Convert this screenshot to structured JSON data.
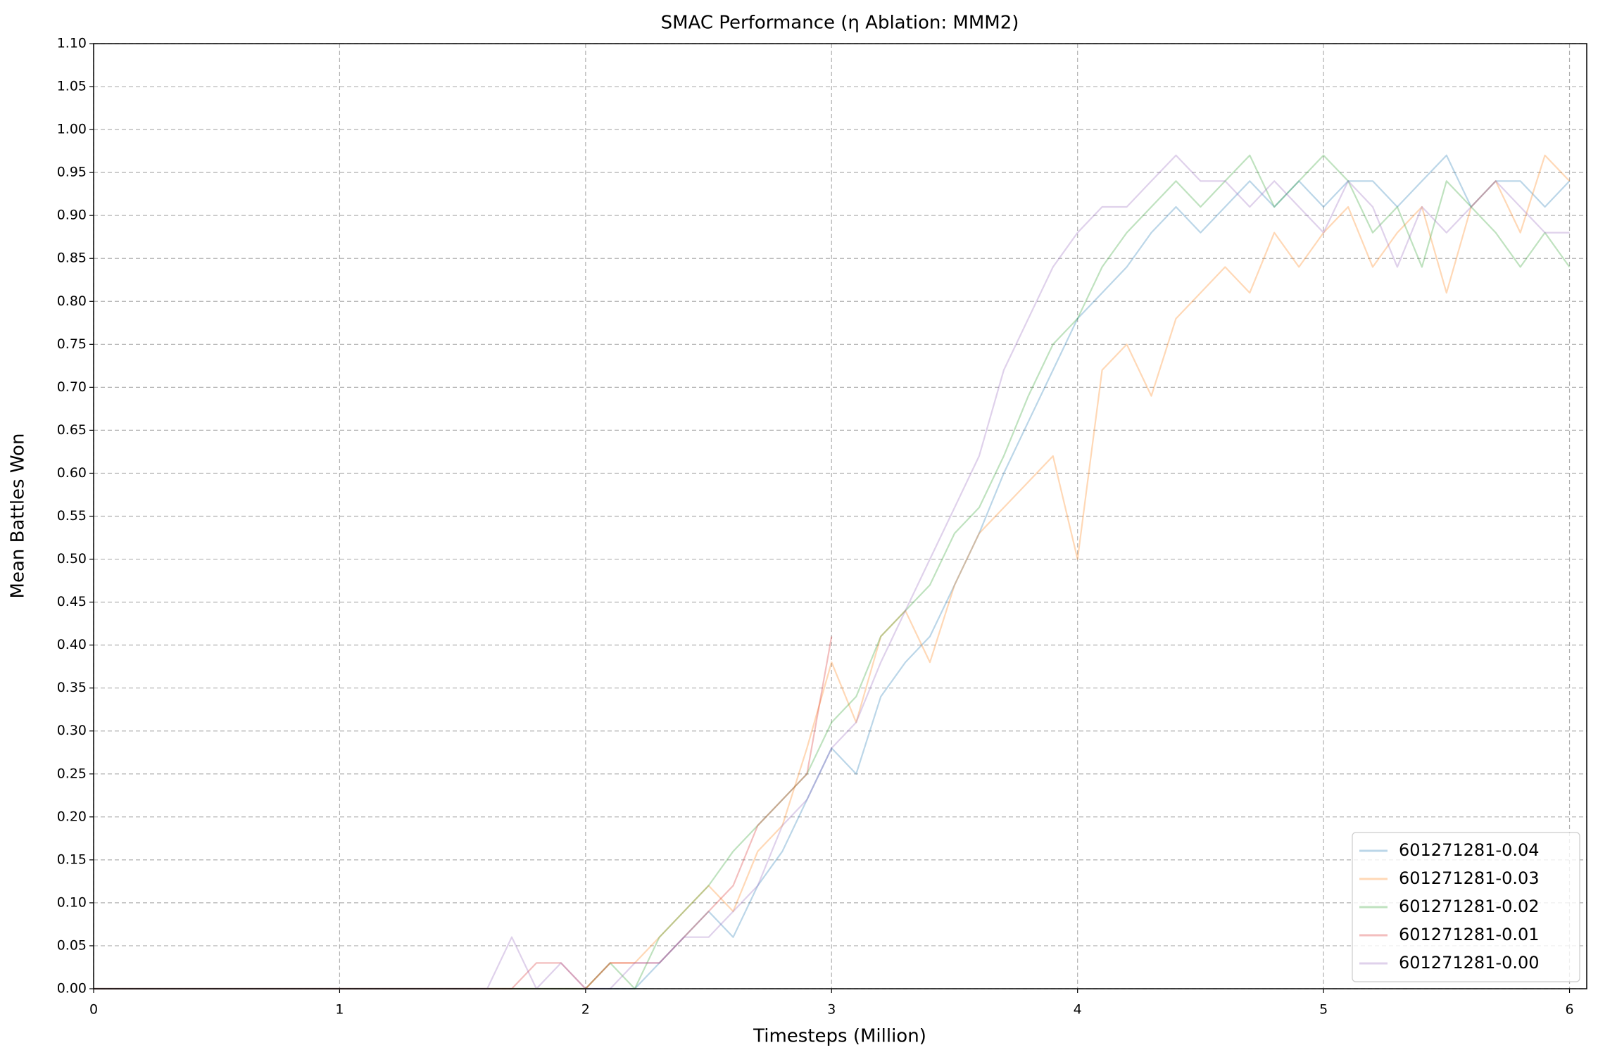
{
  "chart_data": {
    "type": "line",
    "title": "SMAC Performance (η Ablation: MMM2)",
    "x_label": "Timesteps (Million)",
    "y_label": "Mean Battles Won",
    "x": [
      0,
      0.1,
      0.2,
      0.3,
      0.4,
      0.5,
      0.6,
      0.7,
      0.8,
      0.9,
      1,
      1.1,
      1.2,
      1.3,
      1.4,
      1.5,
      1.6,
      1.7,
      1.8,
      1.9,
      2,
      2.1,
      2.2,
      2.3,
      2.4,
      2.5,
      2.6,
      2.7,
      2.8,
      2.9,
      3,
      3.1,
      3.2,
      3.3,
      3.4,
      3.5,
      3.6,
      3.7,
      3.8,
      3.9,
      4,
      4.1,
      4.2,
      4.3,
      4.4,
      4.5,
      4.6,
      4.7,
      4.8,
      4.9,
      5,
      5.1,
      5.2,
      5.3,
      5.4,
      5.5,
      5.6,
      5.7,
      5.8,
      5.9,
      6
    ],
    "series": [
      {
        "name": "601271281-0.04",
        "color": "#1f77b4",
        "values": [
          0,
          0,
          0,
          0,
          0,
          0,
          0,
          0,
          0,
          0,
          0,
          0,
          0,
          0,
          0,
          0,
          0,
          0,
          0,
          0,
          0,
          0,
          0,
          0.03,
          0.06,
          0.09,
          0.06,
          0.12,
          0.16,
          0.22,
          0.28,
          0.25,
          0.34,
          0.38,
          0.41,
          0.47,
          0.53,
          0.6,
          0.66,
          0.72,
          0.78,
          0.81,
          0.84,
          0.88,
          0.91,
          0.88,
          0.91,
          0.94,
          0.91,
          0.94,
          0.91,
          0.94,
          0.94,
          0.91,
          0.94,
          0.97,
          0.91,
          0.94,
          0.94,
          0.91,
          0.94
        ]
      },
      {
        "name": "601271281-0.03",
        "color": "#ff7f0e",
        "values": [
          0,
          0,
          0,
          0,
          0,
          0,
          0,
          0,
          0,
          0,
          0,
          0,
          0,
          0,
          0,
          0,
          0,
          0,
          0,
          0,
          0,
          0.03,
          0.03,
          0.06,
          0.09,
          0.12,
          0.09,
          0.16,
          0.19,
          0.28,
          0.38,
          0.31,
          0.41,
          0.44,
          0.38,
          0.47,
          0.53,
          0.56,
          0.59,
          0.62,
          0.5,
          0.72,
          0.75,
          0.69,
          0.78,
          0.81,
          0.84,
          0.81,
          0.88,
          0.84,
          0.88,
          0.91,
          0.84,
          0.88,
          0.91,
          0.81,
          0.91,
          0.94,
          0.88,
          0.97,
          0.94
        ]
      },
      {
        "name": "601271281-0.02",
        "color": "#2ca02c",
        "values": [
          0,
          0,
          0,
          0,
          0,
          0,
          0,
          0,
          0,
          0,
          0,
          0,
          0,
          0,
          0,
          0,
          0,
          0,
          0,
          0,
          0,
          0.03,
          0,
          0.06,
          0.09,
          0.12,
          0.16,
          0.19,
          0.22,
          0.25,
          0.31,
          0.34,
          0.41,
          0.44,
          0.47,
          0.53,
          0.56,
          0.62,
          0.69,
          0.75,
          0.78,
          0.84,
          0.88,
          0.91,
          0.94,
          0.91,
          0.94,
          0.97,
          0.91,
          0.94,
          0.97,
          0.94,
          0.88,
          0.91,
          0.84,
          0.94,
          0.91,
          0.88,
          0.84,
          0.88,
          0.84
        ]
      },
      {
        "name": "601271281-0.01",
        "color": "#d62728",
        "values": [
          0,
          0,
          0,
          0,
          0,
          0,
          0,
          0,
          0,
          0,
          0,
          0,
          0,
          0,
          0,
          0,
          0,
          0,
          0.03,
          0.03,
          0,
          0.03,
          0.03,
          0.03,
          0.06,
          0.09,
          0.12,
          0.19,
          0.22,
          0.25,
          0.41,
          null,
          null,
          null,
          null,
          null,
          null,
          null,
          null,
          null,
          null,
          null,
          null,
          null,
          null,
          null,
          null,
          null,
          null,
          null,
          null,
          null,
          null,
          null,
          null,
          null,
          null,
          null,
          null,
          null,
          null
        ]
      },
      {
        "name": "601271281-0.00",
        "color": "#9467bd",
        "values": [
          0,
          0,
          0,
          0,
          0,
          0,
          0,
          0,
          0,
          0,
          0,
          0,
          0,
          0,
          0,
          0,
          0,
          0.06,
          0,
          0.03,
          0,
          0,
          0.03,
          0.03,
          0.06,
          0.06,
          0.09,
          0.12,
          0.19,
          0.22,
          0.28,
          0.31,
          0.38,
          0.44,
          0.5,
          0.56,
          0.62,
          0.72,
          0.78,
          0.84,
          0.88,
          0.91,
          0.91,
          0.94,
          0.97,
          0.94,
          0.94,
          0.91,
          0.94,
          0.91,
          0.88,
          0.94,
          0.91,
          0.84,
          0.91,
          0.88,
          0.91,
          0.94,
          0.91,
          0.88,
          0.88
        ]
      }
    ],
    "xlim": [
      0,
      6.07
    ],
    "xticks": [
      0,
      1,
      2,
      3,
      4,
      5,
      6
    ],
    "ylim": [
      0,
      1.1
    ],
    "yticks": [
      {
        "value": 0,
        "label": "0.00"
      },
      {
        "value": 0.05,
        "label": "0.05"
      },
      {
        "value": 0.1,
        "label": "0.10"
      },
      {
        "value": 0.15,
        "label": "0.15"
      },
      {
        "value": 0.2,
        "label": "0.20"
      },
      {
        "value": 0.25,
        "label": "0.25"
      },
      {
        "value": 0.3,
        "label": "0.30"
      },
      {
        "value": 0.35,
        "label": "0.35"
      },
      {
        "value": 0.4,
        "label": "0.40"
      },
      {
        "value": 0.45,
        "label": "0.45"
      },
      {
        "value": 0.5,
        "label": "0.50"
      },
      {
        "value": 0.55,
        "label": "0.55"
      },
      {
        "value": 0.6,
        "label": "0.60"
      },
      {
        "value": 0.65,
        "label": "0.65"
      },
      {
        "value": 0.7,
        "label": "0.70"
      },
      {
        "value": 0.75,
        "label": "0.75"
      },
      {
        "value": 0.8,
        "label": "0.80"
      },
      {
        "value": 0.85,
        "label": "0.85"
      },
      {
        "value": 0.9,
        "label": "0.90"
      },
      {
        "value": 0.95,
        "label": "0.95"
      },
      {
        "value": 1,
        "label": "1.00"
      },
      {
        "value": 1.05,
        "label": "1.05"
      },
      {
        "value": 1.1,
        "label": "1.10"
      }
    ],
    "grid": true,
    "legend": "lower right",
    "line_opacity": 0.3
  }
}
